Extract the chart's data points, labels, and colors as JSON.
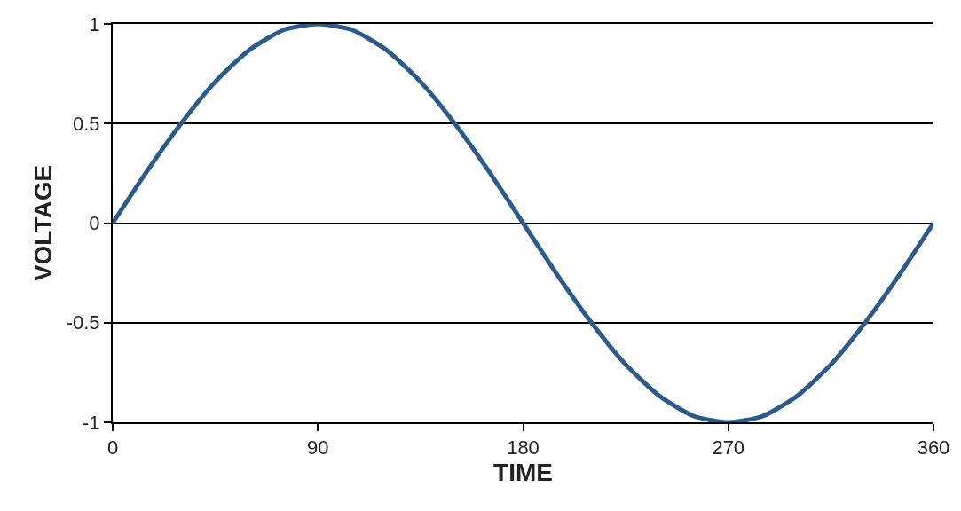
{
  "chart_data": {
    "type": "line",
    "xlabel": "TIME",
    "ylabel": "VOLTAGE",
    "x": [
      0,
      15,
      30,
      45,
      60,
      75,
      90,
      105,
      120,
      135,
      150,
      165,
      180,
      195,
      210,
      225,
      240,
      255,
      270,
      285,
      300,
      315,
      330,
      345,
      360
    ],
    "series": [
      {
        "color": "#2a5b8c",
        "values": [
          0,
          0.26,
          0.5,
          0.71,
          0.87,
          0.97,
          1,
          0.97,
          0.87,
          0.71,
          0.5,
          0.26,
          0,
          -0.26,
          -0.5,
          -0.71,
          -0.87,
          -0.97,
          -1,
          -0.97,
          -0.87,
          -0.71,
          -0.5,
          -0.26,
          0
        ]
      }
    ],
    "xlim": [
      0,
      360
    ],
    "xticks": [
      0,
      90,
      180,
      270,
      360
    ],
    "ylim": [
      -1,
      1
    ],
    "yticks": [
      -1,
      -0.5,
      0,
      0.5,
      1
    ],
    "grid": "y",
    "marker": "none",
    "line_style": "solid"
  }
}
